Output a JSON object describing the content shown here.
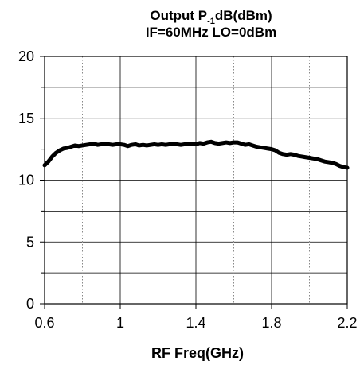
{
  "chart_data": {
    "type": "line",
    "title": {
      "line1_prefix": "Output P",
      "line1_subscript": "-1",
      "line1_suffix": "dB(dBm)",
      "line2": "IF=60MHz LO=0dBm"
    },
    "xlabel": "RF Freq(GHz)",
    "ylabel": "",
    "xlim": [
      0.6,
      2.2
    ],
    "ylim": [
      0,
      20
    ],
    "x_ticks": [
      0.6,
      1.0,
      1.4,
      1.8,
      2.2
    ],
    "x_tick_labels": [
      "0.6",
      "1",
      "1.4",
      "1.8",
      "2.2"
    ],
    "y_ticks": [
      0,
      5,
      10,
      15,
      20
    ],
    "y_tick_labels": [
      "0",
      "5",
      "10",
      "15",
      "20"
    ],
    "grid": {
      "major_x_solid": [
        1.0,
        1.4,
        1.8
      ],
      "minor_x_dotted": [
        0.8,
        1.2,
        1.6,
        2.0
      ],
      "minor_y_solid": [
        2.5,
        7.5,
        12.5,
        17.5
      ]
    },
    "legend": "none",
    "series": [
      {
        "color": "#000000",
        "x": [
          0.6,
          0.62,
          0.64,
          0.66,
          0.68,
          0.7,
          0.72,
          0.74,
          0.76,
          0.78,
          0.8,
          0.82,
          0.84,
          0.86,
          0.88,
          0.9,
          0.92,
          0.94,
          0.96,
          0.98,
          1.0,
          1.02,
          1.04,
          1.06,
          1.08,
          1.1,
          1.12,
          1.14,
          1.16,
          1.18,
          1.2,
          1.22,
          1.24,
          1.26,
          1.28,
          1.3,
          1.32,
          1.34,
          1.36,
          1.38,
          1.4,
          1.42,
          1.44,
          1.46,
          1.48,
          1.5,
          1.52,
          1.54,
          1.56,
          1.58,
          1.6,
          1.62,
          1.64,
          1.66,
          1.68,
          1.7,
          1.72,
          1.74,
          1.76,
          1.78,
          1.8,
          1.82,
          1.84,
          1.86,
          1.88,
          1.9,
          1.92,
          1.94,
          1.96,
          1.98,
          2.0,
          2.02,
          2.04,
          2.06,
          2.08,
          2.1,
          2.12,
          2.14,
          2.16,
          2.18,
          2.2
        ],
        "y": [
          11.2,
          11.5,
          11.9,
          12.2,
          12.4,
          12.55,
          12.6,
          12.7,
          12.8,
          12.75,
          12.8,
          12.85,
          12.9,
          12.95,
          12.85,
          12.9,
          12.95,
          12.9,
          12.85,
          12.9,
          12.9,
          12.85,
          12.75,
          12.85,
          12.9,
          12.8,
          12.85,
          12.8,
          12.85,
          12.9,
          12.85,
          12.9,
          12.85,
          12.9,
          12.95,
          12.9,
          12.85,
          12.9,
          12.95,
          12.9,
          12.9,
          13.0,
          12.95,
          13.05,
          13.1,
          13.0,
          12.95,
          13.0,
          13.05,
          13.0,
          13.05,
          13.05,
          12.95,
          12.85,
          12.9,
          12.8,
          12.7,
          12.65,
          12.6,
          12.55,
          12.5,
          12.4,
          12.2,
          12.1,
          12.05,
          12.1,
          12.05,
          11.95,
          11.9,
          11.85,
          11.8,
          11.75,
          11.7,
          11.6,
          11.5,
          11.45,
          11.4,
          11.3,
          11.15,
          11.05,
          11.0
        ]
      }
    ]
  }
}
